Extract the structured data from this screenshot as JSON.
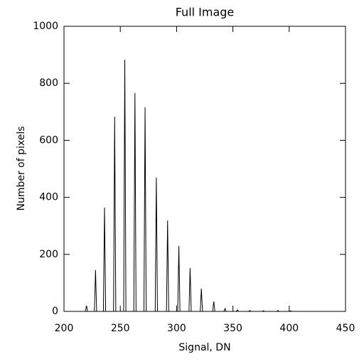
{
  "chart_data": {
    "type": "line",
    "title": "Full Image",
    "x_label": "Signal, DN",
    "y_label": "Number of pixels",
    "x": [
      210,
      219,
      220,
      221,
      227,
      228,
      229,
      235,
      236,
      237,
      244,
      245,
      246,
      253,
      254,
      255,
      262,
      263,
      264,
      271,
      272,
      273,
      281,
      282,
      283,
      291,
      292,
      293,
      301,
      302,
      303,
      311,
      312,
      313,
      321,
      322,
      323,
      332,
      333,
      334,
      342,
      343,
      344,
      353,
      354,
      355,
      364,
      365,
      366,
      376,
      377,
      378,
      389,
      390,
      391,
      400,
      401,
      402,
      440
    ],
    "values": [
      0,
      0,
      20,
      0,
      0,
      145,
      0,
      0,
      364,
      0,
      0,
      683,
      0,
      0,
      883,
      0,
      0,
      766,
      0,
      0,
      716,
      0,
      0,
      469,
      0,
      0,
      319,
      0,
      0,
      229,
      0,
      0,
      152,
      0,
      0,
      80,
      0,
      0,
      35,
      0,
      0,
      10,
      0,
      0,
      5,
      0,
      0,
      3,
      0,
      0,
      2,
      0,
      0,
      3,
      0,
      0,
      2,
      0,
      0
    ],
    "color": "#000000",
    "xlim": [
      200,
      450
    ],
    "xticks": [
      200,
      250,
      300,
      350,
      400,
      450
    ],
    "ylim": [
      0,
      1000
    ],
    "yticks": [
      0,
      200,
      400,
      600,
      800,
      1000
    ]
  }
}
